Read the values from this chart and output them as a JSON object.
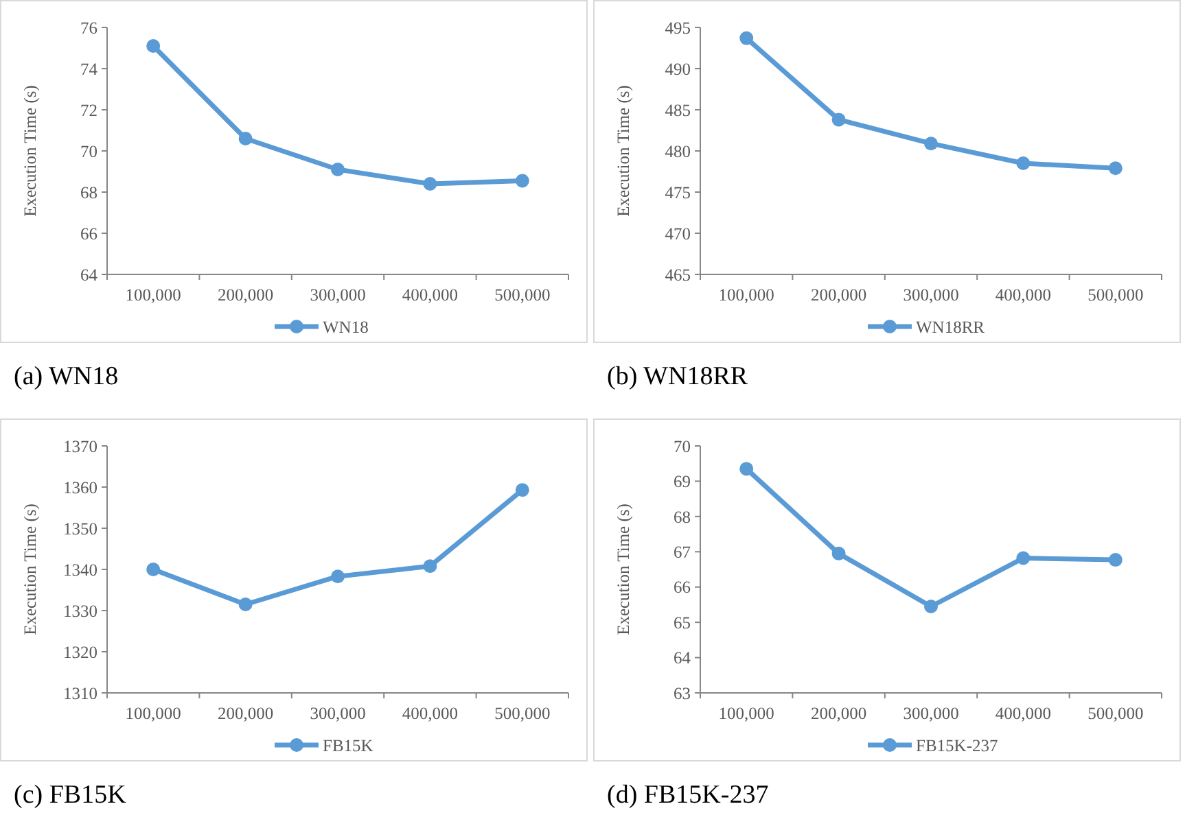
{
  "chart_data": [
    {
      "type": "line",
      "title": "(a) WN18",
      "ylabel": "Execution Time (s)",
      "categories": [
        "100,000",
        "200,000",
        "300,000",
        "400,000",
        "500,000"
      ],
      "series": [
        {
          "name": "WN18",
          "color": "#5b9bd5",
          "values": [
            75.1,
            70.6,
            69.1,
            68.4,
            68.55
          ]
        }
      ],
      "ylim": [
        64,
        76
      ],
      "yticks": [
        64,
        66,
        68,
        70,
        72,
        74,
        76
      ],
      "legend": "bottom",
      "marker": "circle",
      "grid": false
    },
    {
      "type": "line",
      "title": "(b) WN18RR",
      "ylabel": "Execution Time (s)",
      "categories": [
        "100,000",
        "200,000",
        "300,000",
        "400,000",
        "500,000"
      ],
      "series": [
        {
          "name": "WN18RR",
          "color": "#5b9bd5",
          "values": [
            493.7,
            483.8,
            480.9,
            478.5,
            477.9
          ]
        }
      ],
      "ylim": [
        465,
        495
      ],
      "yticks": [
        465,
        470,
        475,
        480,
        485,
        490,
        495
      ],
      "legend": "bottom",
      "marker": "circle",
      "grid": false
    },
    {
      "type": "line",
      "title": "(c) FB15K",
      "ylabel": "Execution Time (s)",
      "categories": [
        "100,000",
        "200,000",
        "300,000",
        "400,000",
        "500,000"
      ],
      "series": [
        {
          "name": "FB15K",
          "color": "#5b9bd5",
          "values": [
            1340,
            1331.5,
            1338.3,
            1340.8,
            1359.3
          ]
        }
      ],
      "ylim": [
        1310,
        1370
      ],
      "yticks": [
        1310,
        1320,
        1330,
        1340,
        1350,
        1360,
        1370
      ],
      "legend": "bottom",
      "marker": "circle",
      "grid": false
    },
    {
      "type": "line",
      "title": "(d) FB15K-237",
      "ylabel": "Execution Time (s)",
      "categories": [
        "100,000",
        "200,000",
        "300,000",
        "400,000",
        "500,000"
      ],
      "series": [
        {
          "name": "FB15K-237",
          "color": "#5b9bd5",
          "values": [
            69.35,
            66.95,
            65.45,
            66.82,
            66.77
          ]
        }
      ],
      "ylim": [
        63,
        70
      ],
      "yticks": [
        63,
        64,
        65,
        66,
        67,
        68,
        69,
        70
      ],
      "legend": "bottom",
      "marker": "circle",
      "grid": false
    }
  ]
}
